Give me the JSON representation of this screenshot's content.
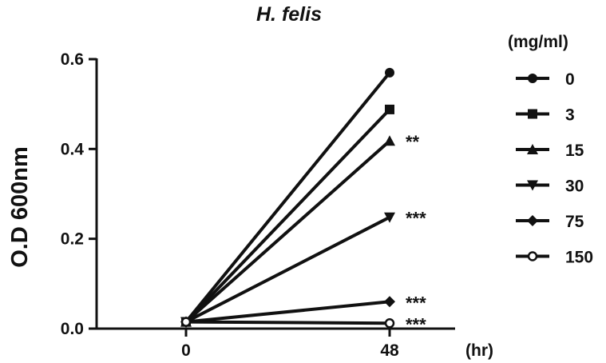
{
  "chart_data": {
    "type": "line",
    "title": "H. felis",
    "xlabel": "(hr)",
    "ylabel": "O.D 600nm",
    "x": [
      "0",
      "48"
    ],
    "ylim": [
      0,
      0.6
    ],
    "yticks": [
      "0.0",
      "0.2",
      "0.4",
      "0.6"
    ],
    "grid": false,
    "legend": {
      "title": "(mg/ml)",
      "position": "right"
    },
    "series": [
      {
        "name": "0",
        "marker": "circle",
        "values": [
          0.015,
          0.57
        ],
        "annotation": ""
      },
      {
        "name": "3",
        "marker": "square",
        "values": [
          0.015,
          0.488
        ],
        "annotation": ""
      },
      {
        "name": "15",
        "marker": "triangle-up",
        "values": [
          0.015,
          0.418
        ],
        "annotation": "**"
      },
      {
        "name": "30",
        "marker": "triangle-down",
        "values": [
          0.015,
          0.248
        ],
        "annotation": "***"
      },
      {
        "name": "75",
        "marker": "diamond",
        "values": [
          0.015,
          0.06
        ],
        "annotation": "***"
      },
      {
        "name": "150",
        "marker": "open-circle",
        "values": [
          0.015,
          0.012
        ],
        "annotation": "***"
      }
    ]
  }
}
